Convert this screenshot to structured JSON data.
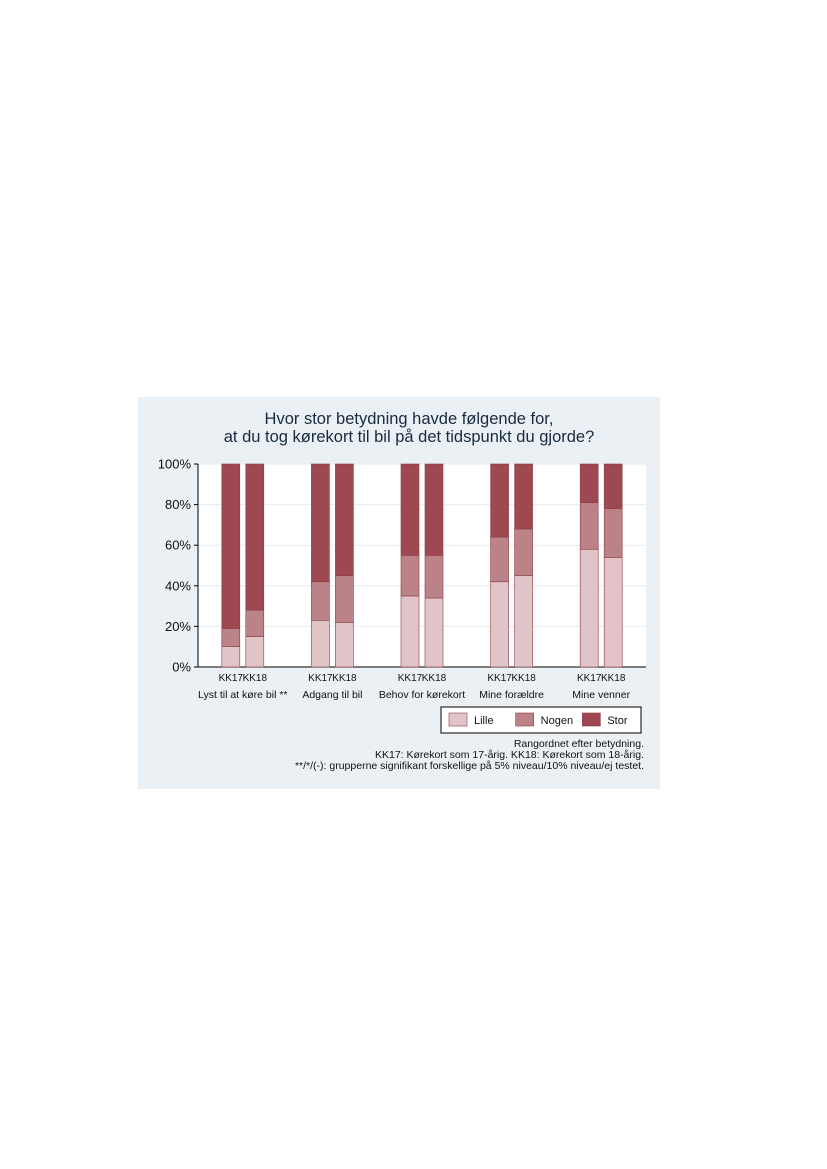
{
  "chart_data": {
    "type": "bar",
    "stacked": true,
    "title": [
      "Hvor stor betydning havde følgende for,",
      "at du tog kørekort til bil på det tidspunkt du gjorde?"
    ],
    "groups": [
      "Lyst til at køre bil **",
      "Adgang til bil",
      "Behov for kørekort",
      "Mine forældre",
      "Mine venner"
    ],
    "bar_labels": [
      "KK17",
      "KK18"
    ],
    "ylim": [
      0,
      100
    ],
    "yticks": [
      "0%",
      "20%",
      "40%",
      "60%",
      "80%",
      "100%"
    ],
    "series": [
      {
        "name": "Lille",
        "color": "#e0c4c8",
        "values": [
          [
            10,
            15
          ],
          [
            23,
            22
          ],
          [
            35,
            34
          ],
          [
            42,
            45
          ],
          [
            58,
            54
          ]
        ]
      },
      {
        "name": "Nogen",
        "color": "#bb8288",
        "values": [
          [
            9,
            13
          ],
          [
            19,
            23
          ],
          [
            20,
            21
          ],
          [
            22,
            23
          ],
          [
            23,
            24
          ]
        ]
      },
      {
        "name": "Stor",
        "color": "#9e4851",
        "values": [
          [
            81,
            72
          ],
          [
            58,
            55
          ],
          [
            45,
            45
          ],
          [
            36,
            32
          ],
          [
            19,
            22
          ]
        ]
      }
    ],
    "legend_position": "bottom-right",
    "grid": true,
    "notes": [
      "Rangordnet efter betydning.",
      "KK17: Kørekort som 17-årig. KK18: Kørekort som 18-årig.",
      "**/*/(-): grupperne signifikant forskellige på 5% niveau/10% niveau/ej testet."
    ]
  }
}
